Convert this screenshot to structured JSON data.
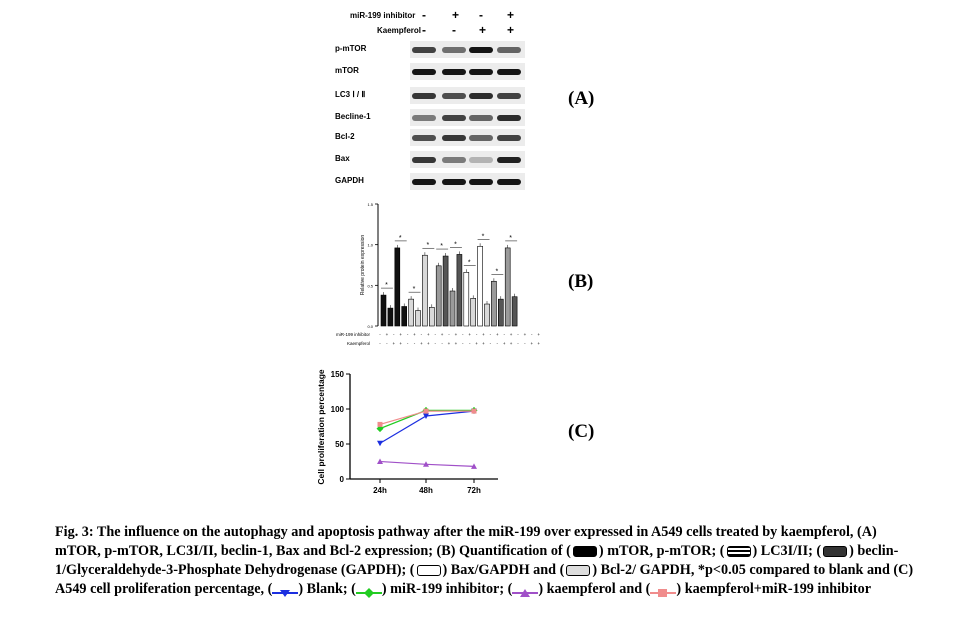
{
  "panel_a": {
    "label": "(A)",
    "conditions": [
      {
        "name": "miR-199 inhibitor",
        "signs": [
          "-",
          "+",
          "-",
          "+"
        ]
      },
      {
        "name": "Kaempferol",
        "signs": [
          "-",
          "-",
          "+",
          "+"
        ]
      }
    ],
    "blots": [
      {
        "name": "p-mTOR",
        "intensity": [
          0.75,
          0.55,
          0.95,
          0.6
        ]
      },
      {
        "name": "mTOR",
        "intensity": [
          0.95,
          0.95,
          0.95,
          0.95
        ]
      },
      {
        "name": "LC3 Ⅰ / Ⅱ",
        "intensity": [
          0.8,
          0.7,
          0.85,
          0.75
        ]
      },
      {
        "name": "Becline-1",
        "intensity": [
          0.5,
          0.75,
          0.6,
          0.85
        ]
      },
      {
        "name": "Bcl-2",
        "intensity": [
          0.7,
          0.8,
          0.6,
          0.75
        ]
      },
      {
        "name": "Bax",
        "intensity": [
          0.8,
          0.5,
          0.25,
          0.9
        ]
      },
      {
        "name": "GAPDH",
        "intensity": [
          0.95,
          0.95,
          0.95,
          0.95
        ]
      }
    ]
  },
  "panel_b": {
    "label": "(B)",
    "row_labels": [
      "miR-199 inhibitor",
      "Kaempferol"
    ],
    "row_signs": [
      [
        "-",
        "+",
        "-",
        "+",
        "-",
        "+",
        "-",
        "+",
        "-",
        "+",
        "-",
        "+",
        "-",
        "+",
        "-",
        "+",
        "-",
        "+",
        "-",
        "+",
        "-",
        "+",
        "-",
        "+"
      ],
      [
        "-",
        "-",
        "+",
        "+",
        "-",
        "-",
        "+",
        "+",
        "-",
        "-",
        "+",
        "+",
        "-",
        "-",
        "+",
        "+",
        "-",
        "-",
        "+",
        "+",
        "-",
        "-",
        "+",
        "+"
      ]
    ],
    "colors": {
      "black": "#111111",
      "light": "#d9d9d9",
      "mid": "#9a9a9a",
      "dark": "#555555",
      "white": "#ffffff"
    }
  },
  "panel_c": {
    "label": "(C)"
  },
  "chart_data": [
    {
      "type": "bar",
      "title": "",
      "xlabel": "",
      "ylabel": "Relative protein expression",
      "ylim": [
        0,
        1.5
      ],
      "yticks": [
        "0.0",
        "0.5",
        "1.0",
        "1.5"
      ],
      "groups": [
        {
          "name": "mTOR/p-mTOR",
          "values": [
            0.38,
            0.22,
            0.96,
            0.24
          ]
        },
        {
          "name": "LC3I/II",
          "values": [
            0.33,
            0.19,
            0.87,
            0.23
          ]
        },
        {
          "name": "beclin-1/GAPDH",
          "values": [
            0.74,
            0.86,
            0.43,
            0.88
          ]
        },
        {
          "name": "Bax/GAPDH",
          "values": [
            0.66,
            0.34,
            0.98,
            0.27
          ]
        },
        {
          "name": "Bcl-2/GAPDH",
          "values": [
            0.55,
            0.33,
            0.96,
            0.36
          ]
        }
      ]
    },
    {
      "type": "line",
      "title": "",
      "xlabel": "",
      "ylabel": "Cell proliferation percentage",
      "categories": [
        "24h",
        "48h",
        "72h"
      ],
      "ylim": [
        0,
        150
      ],
      "yticks": [
        "0",
        "50",
        "100",
        "150"
      ],
      "series": [
        {
          "name": "Blank",
          "values": [
            51,
            90,
            97
          ],
          "color": "#1c2fe0",
          "marker": "triangle-down"
        },
        {
          "name": "miR-199 inhibitor",
          "values": [
            72,
            98,
            98
          ],
          "color": "#22cc22",
          "marker": "diamond"
        },
        {
          "name": "kaempferol",
          "values": [
            25,
            21,
            18
          ],
          "color": "#a050c8",
          "marker": "triangle-up"
        },
        {
          "name": "kaempferol+miR-199 inhibitor",
          "values": [
            78,
            97,
            97
          ],
          "color": "#f08c8c",
          "marker": "square"
        }
      ]
    }
  ],
  "caption": {
    "t1": "Fig. 3: The influence on the autophagy and apoptosis pathway after the miR-199 over expressed in A549 cells treated by kaempferol, (A) mTOR, p-mTOR, LC3I/II, beclin-1, Bax and Bcl-2 expression; (B) Quantification of (",
    "t2": ") mTOR, p-mTOR; (",
    "t3": ") LC3I/II; (",
    "t4": ") beclin-1/Glyceraldehyde-3-Phosphate Dehydrogenase (GAPDH); (",
    "t5": ") Bax/GAPDH and (",
    "t6": ") Bcl-2/ GAPDH, *p<0.05 compared to blank and (C) A549 cell proliferation percentage, (",
    "t7": ") Blank; (",
    "t8": ") miR-199 inhibitor; (",
    "t9": ") kaempferol and (",
    "t10": ") kaempferol+miR-199 inhibitor"
  }
}
